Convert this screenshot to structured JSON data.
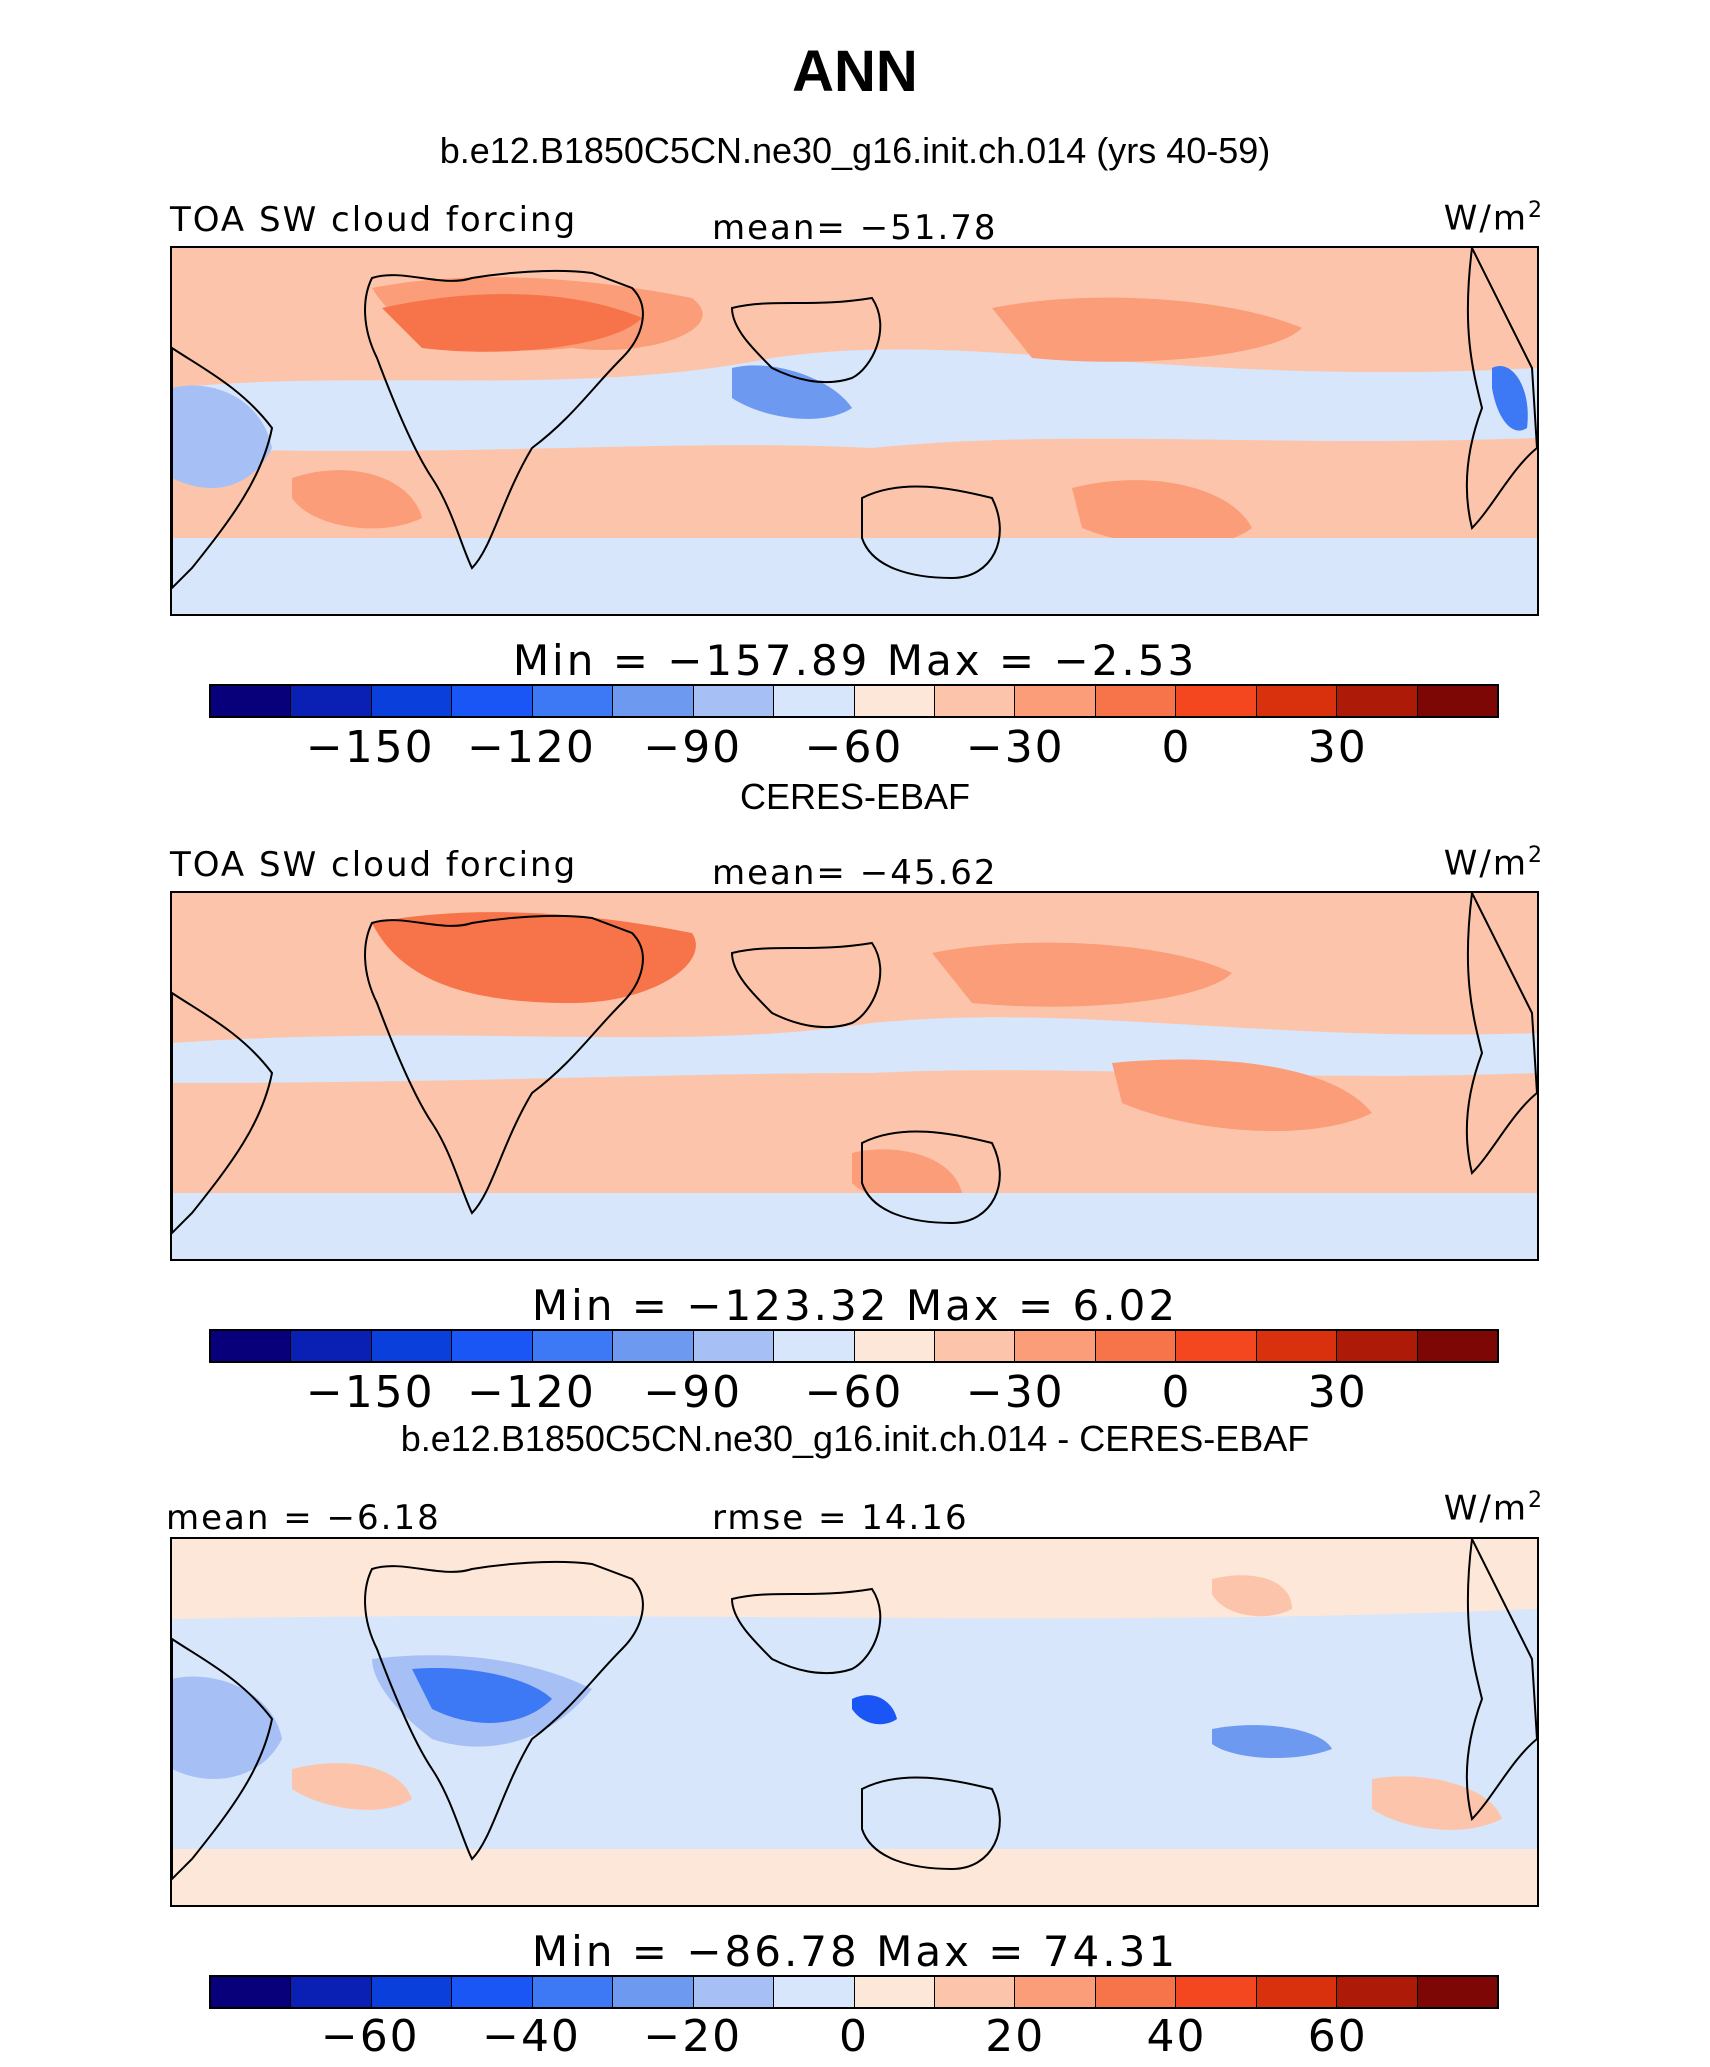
{
  "title": "ANN",
  "units": "W/m",
  "units_sup": "2",
  "palette": [
    "#08007a",
    "#0a1fb3",
    "#0b3fdc",
    "#1a56f5",
    "#3d78f5",
    "#6e99f0",
    "#a6c0f6",
    "#d7e6fb",
    "#fde7d8",
    "#fcc5ab",
    "#fa9d78",
    "#f7734a",
    "#f4461f",
    "#d9300d",
    "#ad1a08",
    "#7d0704"
  ],
  "land_color": "#000000",
  "panels": [
    {
      "title": "b.e12.B1850C5CN.ne30_g16.init.ch.014 (yrs 40-59)",
      "left_label": "TOA SW cloud forcing",
      "center_label": "mean=  −51.78",
      "minmax": "Min  =  −157.89  Max  =    −2.53",
      "ticks": [
        "−150",
        "−120",
        "−90",
        "−60",
        "−30",
        "0",
        "30"
      ],
      "field_mean": -51.78,
      "field_min": -157.89,
      "field_max": -2.53
    },
    {
      "title": "CERES-EBAF",
      "left_label": "TOA SW cloud forcing",
      "center_label": "mean=  −45.62",
      "minmax": "Min  =  −123.32  Max  =     6.02",
      "ticks": [
        "−150",
        "−120",
        "−90",
        "−60",
        "−30",
        "0",
        "30"
      ],
      "field_mean": -45.62,
      "field_min": -123.32,
      "field_max": 6.02
    },
    {
      "title": "b.e12.B1850C5CN.ne30_g16.init.ch.014 - CERES-EBAF",
      "left_label": "mean  =   −6.18",
      "center_label": "rmse  =   14.16",
      "minmax": "Min  =  −86.78  Max  =   74.31",
      "ticks": [
        "−60",
        "−40",
        "−20",
        "0",
        "20",
        "40",
        "60"
      ],
      "field_mean": -6.18,
      "field_rmse": 14.16,
      "field_min": -86.78,
      "field_max": 74.31
    }
  ]
}
